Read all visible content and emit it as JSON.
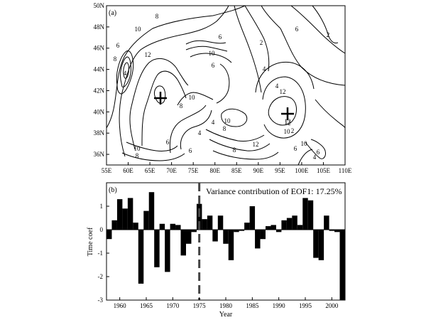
{
  "chart_data": [
    {
      "type": "contour",
      "panel_label": "(a)",
      "title": "",
      "xlabel": "",
      "ylabel": "",
      "x_ticks": [
        "55E",
        "60E",
        "65E",
        "70E",
        "75E",
        "80E",
        "85E",
        "90E",
        "95E",
        "100E",
        "105E",
        "110E"
      ],
      "y_ticks": [
        "36N",
        "38N",
        "40N",
        "42N",
        "44N",
        "46N",
        "48N",
        "50N"
      ],
      "xlim": [
        55,
        110
      ],
      "ylim": [
        35,
        50
      ],
      "contour_labels": [
        "8",
        "10",
        "6",
        "6",
        "10",
        "2",
        "6",
        "2",
        "8",
        "4",
        "12",
        "6",
        "10",
        "4",
        "8",
        "10",
        "12",
        "4",
        "8",
        "12",
        "6",
        "4",
        "6",
        "2",
        "10",
        "8",
        "6",
        "4",
        "12",
        "10",
        "8",
        "10",
        "6",
        "4",
        "12"
      ],
      "markers": [
        {
          "symbol": "+",
          "lon": 68,
          "lat": 41.7
        },
        {
          "symbol": "+",
          "lon": 96,
          "lat": 40.2
        }
      ]
    },
    {
      "type": "bar",
      "panel_label": "(b)",
      "annotation": "Variance contribution of EOF1: 17.25%",
      "xlabel": "Year",
      "ylabel": "Time coef",
      "x_ticks": [
        "1960",
        "1965",
        "1970",
        "1975",
        "1980",
        "1985",
        "1990",
        "1995",
        "2000"
      ],
      "y_ticks": [
        "-3",
        "-2",
        "-1",
        "0",
        "1"
      ],
      "ylim": [
        -3,
        2
      ],
      "xlim": [
        1957.5,
        2002.5
      ],
      "divider_year": 1975,
      "years": [
        1958,
        1959,
        1960,
        1961,
        1962,
        1963,
        1964,
        1965,
        1966,
        1967,
        1968,
        1969,
        1970,
        1971,
        1972,
        1973,
        1974,
        1975,
        1976,
        1977,
        1978,
        1979,
        1980,
        1981,
        1982,
        1983,
        1984,
        1985,
        1986,
        1987,
        1988,
        1989,
        1990,
        1991,
        1992,
        1993,
        1994,
        1995,
        1996,
        1997,
        1998,
        1999,
        2000,
        2001,
        2002
      ],
      "values": [
        -0.4,
        0.4,
        1.3,
        0.9,
        1.35,
        0.3,
        -2.3,
        0.8,
        1.6,
        -1.6,
        0.25,
        -1.8,
        0.25,
        0.2,
        -1.1,
        -0.6,
        -0.1,
        1.1,
        0.45,
        0.6,
        -0.5,
        0.6,
        -0.6,
        -1.3,
        -0.1,
        -0.05,
        0.3,
        1.0,
        -0.8,
        -0.4,
        0.15,
        0.2,
        -0.1,
        0.4,
        0.5,
        0.6,
        0.2,
        1.35,
        1.25,
        -1.2,
        -1.3,
        0.6,
        -0.05,
        -0.1,
        -3.0
      ]
    }
  ]
}
